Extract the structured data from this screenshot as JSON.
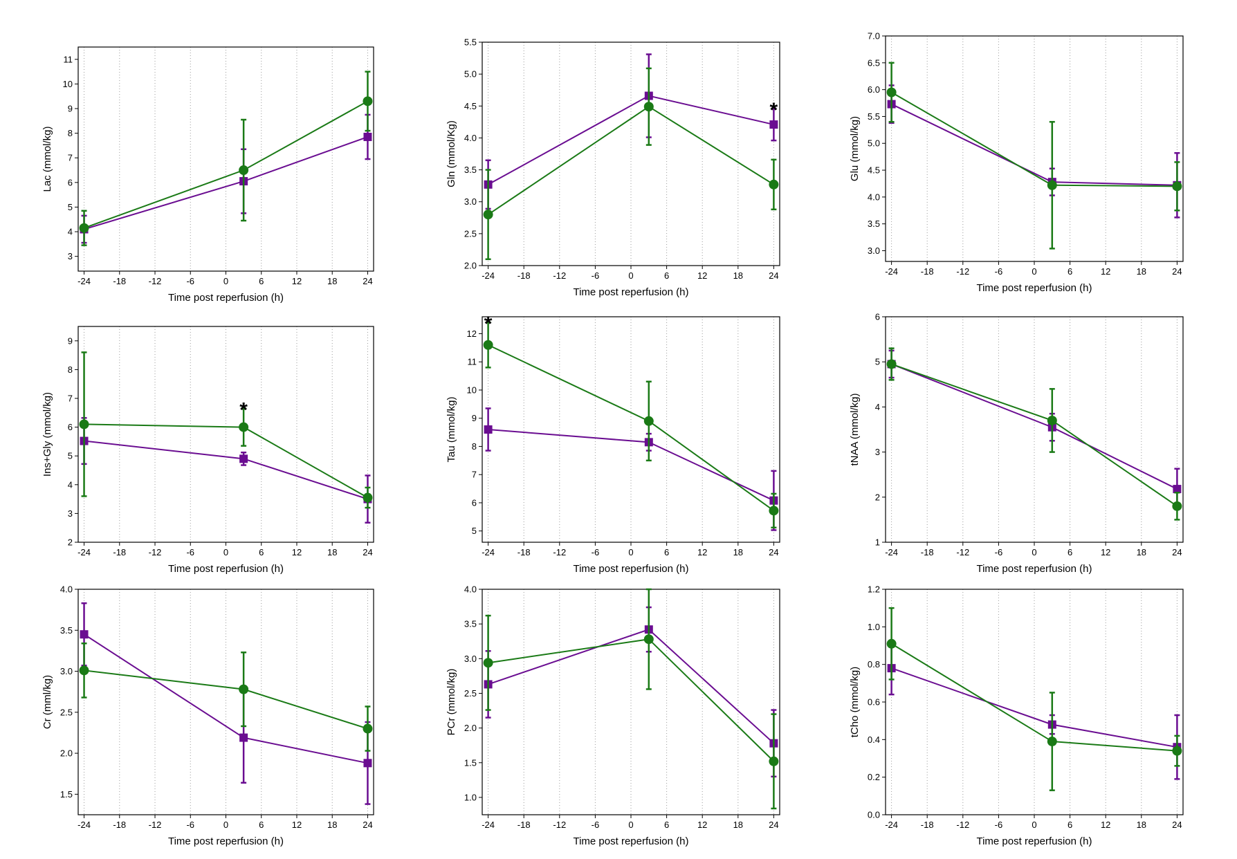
{
  "colors": {
    "purple": "#6a0d91",
    "green": "#1a7a16"
  },
  "chart_data": [
    {
      "type": "line",
      "xlabel": "Time post reperfusion (h)",
      "ylabel": "Lac (mmol/kg)",
      "xlim": [
        -25,
        25
      ],
      "xticks": [
        -24,
        -18,
        -12,
        -6,
        0,
        6,
        12,
        18,
        24
      ],
      "ylim": [
        2.4,
        11.5
      ],
      "yticks": [
        3,
        4,
        5,
        6,
        7,
        8,
        9,
        10,
        11
      ],
      "x": [
        -24,
        3,
        24
      ],
      "series": [
        {
          "color": "purple",
          "marker": "square",
          "values": [
            4.1,
            6.05,
            7.85
          ],
          "err": [
            0.55,
            1.3,
            0.9
          ]
        },
        {
          "color": "green",
          "marker": "circle",
          "values": [
            4.15,
            6.5,
            9.3
          ],
          "err": [
            0.7,
            2.05,
            1.2
          ]
        }
      ],
      "significance": []
    },
    {
      "type": "line",
      "xlabel": "Time post reperfusion (h)",
      "ylabel": "Gln (mmol/Kg)",
      "xlim": [
        -25,
        25
      ],
      "xticks": [
        -24,
        -18,
        -12,
        -6,
        0,
        6,
        12,
        18,
        24
      ],
      "ylim": [
        2.0,
        5.5
      ],
      "yticks": [
        "2.0",
        "2.5",
        "3.0",
        "3.5",
        "4.0",
        "4.5",
        "5.0",
        "5.5"
      ],
      "x": [
        -24,
        3,
        24
      ],
      "series": [
        {
          "color": "purple",
          "marker": "square",
          "values": [
            3.27,
            4.66,
            4.21
          ],
          "err": [
            0.38,
            0.65,
            0.25
          ]
        },
        {
          "color": "green",
          "marker": "circle",
          "values": [
            2.8,
            4.49,
            3.27
          ],
          "err": [
            0.7,
            0.6,
            0.39
          ]
        }
      ],
      "significance": [
        {
          "x": 24,
          "label": "*"
        }
      ]
    },
    {
      "type": "line",
      "xlabel": "Time post reperfusion (h)",
      "ylabel": "Glu (mmol/kg)",
      "xlim": [
        -25,
        25
      ],
      "xticks": [
        -24,
        -18,
        -12,
        -6,
        0,
        6,
        12,
        18,
        24
      ],
      "ylim": [
        2.8,
        7.0
      ],
      "yticks": [
        "3.0",
        "3.5",
        "4.0",
        "4.5",
        "5.0",
        "5.5",
        "6.0",
        "6.5",
        "7.0"
      ],
      "x": [
        -24,
        3,
        24
      ],
      "series": [
        {
          "color": "purple",
          "marker": "square",
          "values": [
            5.73,
            4.28,
            4.22
          ],
          "err": [
            0.35,
            0.25,
            0.6
          ]
        },
        {
          "color": "green",
          "marker": "circle",
          "values": [
            5.95,
            4.22,
            4.2
          ],
          "err": [
            0.55,
            1.18,
            0.45
          ]
        }
      ],
      "significance": []
    },
    {
      "type": "line",
      "xlabel": "Time post reperfusion (h)",
      "ylabel": "Ins+Gly (mmol/kg)",
      "xlim": [
        -25,
        25
      ],
      "xticks": [
        -24,
        -18,
        -12,
        -6,
        0,
        6,
        12,
        18,
        24
      ],
      "ylim": [
        2,
        9.5
      ],
      "yticks": [
        2,
        3,
        4,
        5,
        6,
        7,
        8,
        9
      ],
      "x": [
        -24,
        3,
        24
      ],
      "series": [
        {
          "color": "purple",
          "marker": "square",
          "values": [
            5.52,
            4.9,
            3.5
          ],
          "err": [
            0.8,
            0.22,
            0.82
          ]
        },
        {
          "color": "green",
          "marker": "circle",
          "values": [
            6.1,
            6.0,
            3.55
          ],
          "err": [
            2.5,
            0.65,
            0.35
          ]
        }
      ],
      "significance": [
        {
          "x": 3,
          "label": "*"
        }
      ]
    },
    {
      "type": "line",
      "xlabel": "Time post reperfusion (h)",
      "ylabel": "Tau (mmol/kg)",
      "xlim": [
        -25,
        25
      ],
      "xticks": [
        -24,
        -18,
        -12,
        -6,
        0,
        6,
        12,
        18,
        24
      ],
      "ylim": [
        4.6,
        12.6
      ],
      "yticks": [
        5,
        6,
        7,
        8,
        9,
        10,
        11,
        12
      ],
      "x": [
        -24,
        3,
        24
      ],
      "series": [
        {
          "color": "purple",
          "marker": "square",
          "values": [
            8.6,
            8.15,
            6.08
          ],
          "err": [
            0.75,
            0.3,
            1.05
          ]
        },
        {
          "color": "green",
          "marker": "circle",
          "values": [
            11.6,
            8.9,
            5.72
          ],
          "err": [
            0.8,
            1.4,
            0.6
          ]
        }
      ],
      "significance": [
        {
          "x": -24,
          "label": "*"
        }
      ]
    },
    {
      "type": "line",
      "xlabel": "Time post reperfusion (h)",
      "ylabel": "tNAA (mmol/kg)",
      "xlim": [
        -25,
        25
      ],
      "xticks": [
        -24,
        -18,
        -12,
        -6,
        0,
        6,
        12,
        18,
        24
      ],
      "ylim": [
        1,
        6
      ],
      "yticks": [
        1,
        2,
        3,
        4,
        5,
        6
      ],
      "x": [
        -24,
        3,
        24
      ],
      "series": [
        {
          "color": "purple",
          "marker": "square",
          "values": [
            4.95,
            3.55,
            2.18
          ],
          "err": [
            0.3,
            0.3,
            0.45
          ]
        },
        {
          "color": "green",
          "marker": "circle",
          "values": [
            4.95,
            3.7,
            1.8
          ],
          "err": [
            0.35,
            0.7,
            0.3
          ]
        }
      ],
      "significance": []
    },
    {
      "type": "line",
      "xlabel": "Time post reperfusion (h)",
      "ylabel": "Cr (mml/kg)",
      "xlim": [
        -25,
        25
      ],
      "xticks": [
        -24,
        -18,
        -12,
        -6,
        0,
        6,
        12,
        18,
        24
      ],
      "ylim": [
        1.25,
        4.0
      ],
      "yticks": [
        "1.5",
        "2.0",
        "2.5",
        "3.0",
        "3.5",
        "4.0"
      ],
      "x": [
        -24,
        3,
        24
      ],
      "series": [
        {
          "color": "purple",
          "marker": "square",
          "values": [
            3.45,
            2.19,
            1.88
          ],
          "err": [
            0.38,
            0.55,
            0.5
          ]
        },
        {
          "color": "green",
          "marker": "circle",
          "values": [
            3.01,
            2.78,
            2.3
          ],
          "err": [
            0.33,
            0.45,
            0.27
          ]
        }
      ],
      "significance": []
    },
    {
      "type": "line",
      "xlabel": "Time post reperfusion (h)",
      "ylabel": "PCr (mmol/kg)",
      "xlim": [
        -25,
        25
      ],
      "xticks": [
        -24,
        -18,
        -12,
        -6,
        0,
        6,
        12,
        18,
        24
      ],
      "ylim": [
        0.75,
        4.0
      ],
      "yticks": [
        "1.0",
        "1.5",
        "2.0",
        "2.5",
        "3.0",
        "3.5",
        "4.0"
      ],
      "x": [
        -24,
        3,
        24
      ],
      "series": [
        {
          "color": "purple",
          "marker": "square",
          "values": [
            2.63,
            3.42,
            1.78
          ],
          "err": [
            0.48,
            0.32,
            0.48
          ]
        },
        {
          "color": "green",
          "marker": "circle",
          "values": [
            2.94,
            3.28,
            1.52
          ],
          "err": [
            0.68,
            0.72,
            0.68
          ]
        }
      ],
      "significance": []
    },
    {
      "type": "line",
      "xlabel": "Time post reperfusion (h)",
      "ylabel": "tCho (mmol/kg)",
      "xlim": [
        -25,
        25
      ],
      "xticks": [
        -24,
        -18,
        -12,
        -6,
        0,
        6,
        12,
        18,
        24
      ],
      "ylim": [
        0.0,
        1.2
      ],
      "yticks": [
        "0.0",
        "0.2",
        "0.4",
        "0.6",
        "0.8",
        "1.0",
        "1.2"
      ],
      "x": [
        -24,
        3,
        24
      ],
      "series": [
        {
          "color": "purple",
          "marker": "square",
          "values": [
            0.78,
            0.48,
            0.36
          ],
          "err": [
            0.14,
            0.05,
            0.17
          ]
        },
        {
          "color": "green",
          "marker": "circle",
          "values": [
            0.91,
            0.39,
            0.34
          ],
          "err": [
            0.19,
            0.26,
            0.08
          ]
        }
      ],
      "significance": []
    }
  ]
}
